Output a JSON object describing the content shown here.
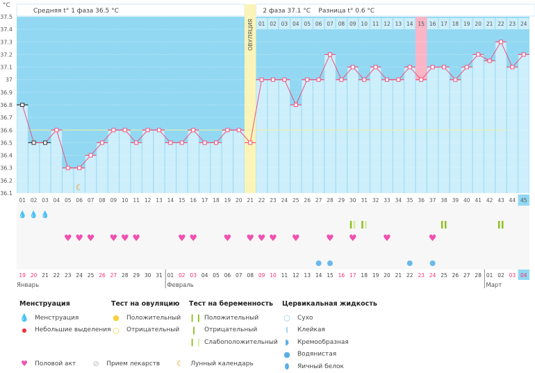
{
  "header": {
    "unit": "°C",
    "phase1_avg": "Средняя t° 1 фаза 36.5 °C",
    "phase2_avg": "2 фаза 37.1 °C",
    "difference": "Разница t° 0.6 °C",
    "ovulation_label": "ОВУЛЯЦИЯ"
  },
  "colors": {
    "bar_light": "#cdeefb",
    "bg_dark": "#92d8f3",
    "line": "#f0507a",
    "ovulation": "#fbf4b8",
    "highlight": "#f9b4c6",
    "coverline": "#f0f0a0",
    "weekend": "#f0306a"
  },
  "chart_data": {
    "type": "line",
    "ylabel": "°C",
    "ylim": [
      36.1,
      37.5
    ],
    "yticks": [
      "37.5",
      "37.4",
      "37.3",
      "37.2",
      "37.1",
      "37",
      "36.9",
      "36.8",
      "36.7",
      "36.6",
      "36.5",
      "36.4",
      "36.3",
      "36.2",
      "36.1"
    ],
    "cycle_days": [
      "01",
      "02",
      "03",
      "04",
      "05",
      "06",
      "07",
      "08",
      "09",
      "10",
      "11",
      "12",
      "13",
      "14",
      "15",
      "16",
      "17",
      "18",
      "19",
      "20",
      "21",
      "22",
      "23",
      "24",
      "25",
      "26",
      "27",
      "28",
      "29",
      "30",
      "31",
      "32",
      "33",
      "34",
      "35",
      "36",
      "37",
      "38",
      "39",
      "40",
      "41",
      "42",
      "43",
      "44",
      "45"
    ],
    "phase2_days": [
      "01",
      "02",
      "03",
      "04",
      "05",
      "06",
      "07",
      "08",
      "09",
      "10",
      "11",
      "12",
      "13",
      "14",
      "15",
      "16",
      "17",
      "18",
      "19",
      "20",
      "21",
      "22",
      "23",
      "24"
    ],
    "temperatures": [
      36.8,
      36.5,
      36.5,
      36.6,
      36.3,
      36.3,
      36.4,
      36.5,
      36.6,
      36.6,
      36.5,
      36.6,
      36.6,
      36.5,
      36.5,
      36.6,
      36.5,
      36.5,
      36.6,
      36.6,
      36.5,
      37.0,
      37.0,
      37.0,
      36.8,
      37.0,
      37.0,
      37.2,
      37.0,
      37.1,
      37.0,
      37.1,
      37.0,
      37.0,
      37.1,
      37.0,
      37.1,
      37.1,
      37.0,
      37.1,
      37.2,
      37.15,
      37.3,
      37.1,
      37.2
    ],
    "coverline": 36.6,
    "ovulation_day": 21,
    "highlighted_day": 36,
    "current_day": 45,
    "dates": [
      "19",
      "20",
      "21",
      "22",
      "23",
      "24",
      "25",
      "26",
      "27",
      "28",
      "29",
      "30",
      "31",
      "01",
      "02",
      "03",
      "04",
      "05",
      "06",
      "07",
      "08",
      "09",
      "10",
      "11",
      "12",
      "13",
      "14",
      "15",
      "16",
      "17",
      "18",
      "19",
      "20",
      "21",
      "22",
      "23",
      "24",
      "25",
      "26",
      "27",
      "28",
      "01",
      "02",
      "03",
      "04"
    ],
    "red_dates_idx": [
      0,
      1,
      7,
      8,
      14,
      15,
      21,
      22,
      28,
      29,
      35,
      36,
      43,
      44
    ],
    "months": [
      {
        "label": "Январь",
        "start_day": 1
      },
      {
        "label": "Февраль",
        "start_day": 14
      },
      {
        "label": "Март",
        "start_day": 42
      }
    ],
    "menstruation_days": [
      1,
      2,
      3
    ],
    "intercourse_days": [
      5,
      6,
      7,
      9,
      10,
      11,
      15,
      16,
      19,
      21,
      22,
      23,
      25,
      28,
      30,
      33,
      37
    ],
    "pregnancy_tests": [
      {
        "day": 30,
        "result": "weak"
      },
      {
        "day": 31,
        "result": "weak"
      },
      {
        "day": 38,
        "result": "positive"
      },
      {
        "day": 43,
        "result": "positive"
      }
    ],
    "cervical_watery_days": [
      27,
      28,
      35,
      37
    ],
    "moon_days": [
      6
    ]
  },
  "legend": {
    "menstruation": {
      "title": "Менструация",
      "items": [
        "Менструация",
        "Небольшие выделения"
      ]
    },
    "ovulation_test": {
      "title": "Тест на овуляцию",
      "items": [
        "Положительный",
        "Отрицательный"
      ]
    },
    "pregnancy_test": {
      "title": "Тест на беременность",
      "items": [
        "Положительный",
        "Отрицательный",
        "Слабоположительный"
      ]
    },
    "cervical": {
      "title": "Цервикальная жидкость",
      "items": [
        "Сухо",
        "Клейкая",
        "Кремообразная",
        "Водянистая",
        "Яичный белок"
      ]
    },
    "other": [
      "Половой акт",
      "Прием лекарств",
      "Лунный календарь"
    ]
  }
}
